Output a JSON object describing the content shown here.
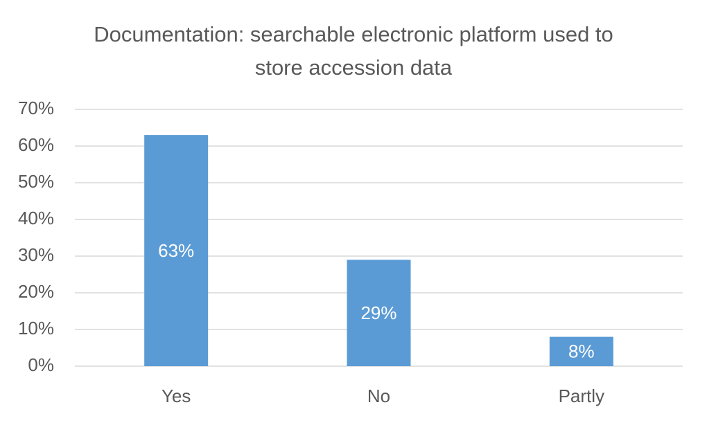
{
  "chart_data": {
    "type": "bar",
    "title": "Documentation: searchable electronic platform used to store accession data",
    "categories": [
      "Yes",
      "No",
      "Partly"
    ],
    "values": [
      63,
      29,
      8
    ],
    "value_labels": [
      "63%",
      "29%",
      "8%"
    ],
    "color": "#5b9bd5",
    "ylim": [
      0,
      70
    ],
    "yticks": [
      {
        "value": 0,
        "label": "0%"
      },
      {
        "value": 10,
        "label": "10%"
      },
      {
        "value": 20,
        "label": "20%"
      },
      {
        "value": 30,
        "label": "30%"
      },
      {
        "value": 40,
        "label": "40%"
      },
      {
        "value": 50,
        "label": "50%"
      },
      {
        "value": 60,
        "label": "60%"
      },
      {
        "value": 70,
        "label": "70%"
      }
    ],
    "grid": true
  }
}
